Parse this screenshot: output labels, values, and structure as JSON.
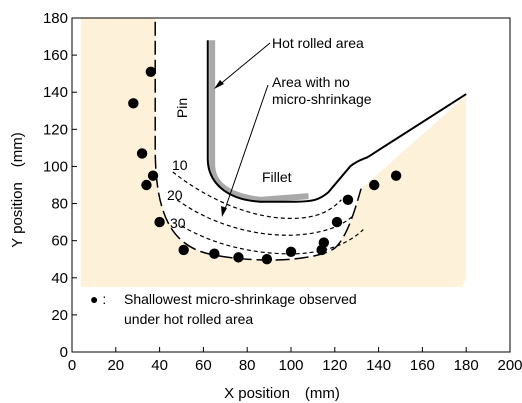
{
  "chart_data": {
    "type": "scatter",
    "xlabel": "X position (mm)",
    "ylabel": "Y position (mm)",
    "xlim": [
      0,
      200
    ],
    "ylim": [
      0,
      180
    ],
    "xticks": [
      0,
      20,
      40,
      60,
      80,
      100,
      120,
      140,
      160,
      180,
      200
    ],
    "yticks": [
      0,
      20,
      40,
      60,
      80,
      100,
      120,
      140,
      160,
      180
    ],
    "grid": false,
    "series": [
      {
        "points": [
          {
            "x": 28,
            "y": 134
          },
          {
            "x": 36,
            "y": 151
          },
          {
            "x": 32,
            "y": 107
          },
          {
            "x": 34,
            "y": 90
          },
          {
            "x": 37,
            "y": 95
          },
          {
            "x": 40,
            "y": 70
          },
          {
            "x": 51,
            "y": 55
          },
          {
            "x": 65,
            "y": 53
          },
          {
            "x": 76,
            "y": 51
          },
          {
            "x": 89,
            "y": 50
          },
          {
            "x": 100,
            "y": 54
          },
          {
            "x": 114,
            "y": 55
          },
          {
            "x": 115,
            "y": 59
          },
          {
            "x": 121,
            "y": 70
          },
          {
            "x": 126,
            "y": 82
          },
          {
            "x": 138,
            "y": 90
          },
          {
            "x": 148,
            "y": 95
          }
        ]
      }
    ],
    "regions": {
      "shaded_area_color": "#fdf1da",
      "hot_rolled_color": "#a9a9a9"
    },
    "annotations": {
      "hot_rolled_area": "Hot rolled area",
      "no_microshrinkage_line1": "Area with no",
      "no_microshrinkage_line2": "micro-shrinkage",
      "pin": "Pin",
      "fillet": "Fillet",
      "contour_10": "10",
      "contour_20": "20",
      "contour_30": "30",
      "legend_marker": "● :",
      "legend_line1": "Shallowest micro-shrinkage observed",
      "legend_line2": "under hot rolled area"
    }
  }
}
